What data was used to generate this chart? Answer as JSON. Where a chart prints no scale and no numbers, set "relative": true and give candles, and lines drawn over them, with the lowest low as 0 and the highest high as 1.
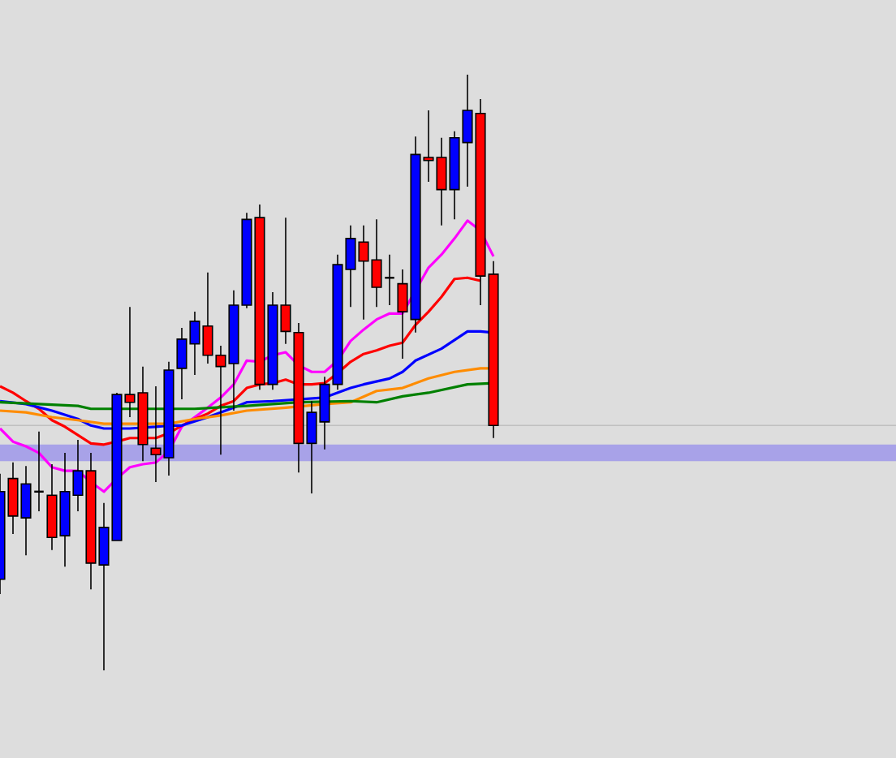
{
  "chart_data": {
    "type": "candlestick",
    "relative": true,
    "categories": [
      null,
      null,
      null,
      null,
      null,
      null,
      null,
      null,
      null,
      null,
      null,
      null,
      null,
      null,
      null,
      null,
      null,
      null,
      null,
      null,
      null,
      null,
      null,
      null,
      null,
      null,
      null,
      null,
      null,
      null,
      null,
      null,
      null,
      null,
      null,
      null,
      null,
      null,
      null
    ],
    "ohlc": [
      [
        0.153,
        0.33,
        0.128,
        0.3
      ],
      [
        0.322,
        0.349,
        0.229,
        0.259
      ],
      [
        0.256,
        0.343,
        0.193,
        0.313
      ],
      [
        0.3,
        0.401,
        0.267,
        0.3
      ],
      [
        0.294,
        0.346,
        0.202,
        0.223
      ],
      [
        0.226,
        0.365,
        0.174,
        0.3
      ],
      [
        0.294,
        0.387,
        0.267,
        0.335
      ],
      [
        0.335,
        0.365,
        0.136,
        0.18
      ],
      [
        0.177,
        0.281,
        0,
        0.24
      ],
      [
        0.218,
        0.466,
        0.218,
        0.463
      ],
      [
        0.463,
        0.61,
        0.425,
        0.45
      ],
      [
        0.466,
        0.51,
        0.351,
        0.379
      ],
      [
        0.373,
        0.477,
        0.316,
        0.362
      ],
      [
        0.357,
        0.518,
        0.327,
        0.504
      ],
      [
        0.507,
        0.575,
        0.455,
        0.556
      ],
      [
        0.548,
        0.602,
        0.496,
        0.586
      ],
      [
        0.578,
        0.668,
        0.515,
        0.529
      ],
      [
        0.529,
        0.545,
        0.362,
        0.51
      ],
      [
        0.515,
        0.638,
        0.436,
        0.613
      ],
      [
        0.613,
        0.768,
        0.608,
        0.757
      ],
      [
        0.76,
        0.782,
        0.471,
        0.48
      ],
      [
        0.48,
        0.635,
        0.471,
        0.613
      ],
      [
        0.613,
        0.76,
        0.548,
        0.569
      ],
      [
        0.567,
        0.583,
        0.332,
        0.381
      ],
      [
        0.381,
        0.452,
        0.297,
        0.433
      ],
      [
        0.417,
        0.493,
        0.371,
        0.48
      ],
      [
        0.48,
        0.698,
        0.471,
        0.681
      ],
      [
        0.673,
        0.747,
        0.61,
        0.725
      ],
      [
        0.719,
        0.747,
        0.589,
        0.687
      ],
      [
        0.689,
        0.757,
        0.61,
        0.643
      ],
      [
        0.659,
        0.698,
        0.613,
        0.659
      ],
      [
        0.649,
        0.673,
        0.523,
        0.602
      ],
      [
        0.589,
        0.896,
        0.567,
        0.866
      ],
      [
        0.861,
        0.94,
        0.82,
        0.856
      ],
      [
        0.861,
        0.894,
        0.747,
        0.807
      ],
      [
        0.807,
        0.905,
        0.757,
        0.894
      ],
      [
        0.886,
        1.0,
        0.812,
        0.94
      ],
      [
        0.935,
        0.959,
        0.613,
        0.662
      ],
      [
        0.665,
        0.687,
        0.39,
        0.411
      ]
    ],
    "colors": [
      "#0000ff",
      "#ff0000",
      "#0000ff",
      "#000000",
      "#ff0000",
      "#0000ff",
      "#0000ff",
      "#ff0000",
      "#0000ff",
      "#0000ff",
      "#ff0000",
      "#ff0000",
      "#ff0000",
      "#0000ff",
      "#0000ff",
      "#0000ff",
      "#ff0000",
      "#ff0000",
      "#0000ff",
      "#0000ff",
      "#ff0000",
      "#0000ff",
      "#ff0000",
      "#ff0000",
      "#0000ff",
      "#0000ff",
      "#0000ff",
      "#0000ff",
      "#ff0000",
      "#ff0000",
      "#000000",
      "#ff0000",
      "#0000ff",
      "#ff0000",
      "#ff0000",
      "#0000ff",
      "#0000ff",
      "#ff0000",
      "#ff0000"
    ],
    "series": [
      {
        "type": "line",
        "color": "#ff00ff",
        "values": [
          0.406,
          0.384,
          0.376,
          0.365,
          0.341,
          0.335,
          0.335,
          0.316,
          0.3,
          0.322,
          0.341,
          0.346,
          0.349,
          0.368,
          0.409,
          0.425,
          0.441,
          0.458,
          0.48,
          0.52,
          0.518,
          0.529,
          0.534,
          0.512,
          0.501,
          0.501,
          0.52,
          0.553,
          0.572,
          0.589,
          0.599,
          0.599,
          null,
          0.676,
          0.698,
          0.725,
          0.755,
          0.738,
          0.695
        ]
      },
      {
        "type": "line",
        "color": "#ff0000",
        "values": [
          0.477,
          0.466,
          0.452,
          0.439,
          0.42,
          0.409,
          0.395,
          0.381,
          0.379,
          0.384,
          0.39,
          0.39,
          0.39,
          0.398,
          0.411,
          0.422,
          0.431,
          0.444,
          0.452,
          0.474,
          0.48,
          0.482,
          0.488,
          0.48,
          0.48,
          0.482,
          0.499,
          0.518,
          0.531,
          0.537,
          0.545,
          0.55,
          0.58,
          0.602,
          0.627,
          0.657,
          0.659,
          0.654,
          null
        ]
      },
      {
        "type": "line",
        "color": "#0000ff",
        "values": [
          0.452,
          null,
          0.447,
          null,
          0.436,
          null,
          0.422,
          0.411,
          0.406,
          null,
          0.406,
          null,
          0.409,
          0.411,
          0.411,
          null,
          0.425,
          null,
          0.441,
          0.45,
          null,
          0.452,
          null,
          0.455,
          null,
          0.458,
          null,
          0.474,
          0.48,
          null,
          0.49,
          0.501,
          0.52,
          null,
          0.54,
          null,
          0.569,
          0.569,
          0.567
        ]
      },
      {
        "type": "line",
        "color": "#ff8c00",
        "values": [
          0.436,
          null,
          0.433,
          null,
          0.425,
          null,
          0.42,
          null,
          0.414,
          null,
          0.414,
          null,
          0.414,
          0.414,
          null,
          0.422,
          null,
          0.428,
          null,
          0.436,
          null,
          null,
          0.441,
          null,
          null,
          0.447,
          null,
          0.45,
          null,
          0.469,
          null,
          0.474,
          null,
          0.49,
          null,
          0.501,
          null,
          0.507,
          0.507
        ]
      },
      {
        "type": "line",
        "color": "#008000",
        "values": [
          0.45,
          null,
          null,
          0.447,
          null,
          null,
          0.444,
          0.439,
          null,
          0.439,
          null,
          null,
          null,
          0.439,
          null,
          0.439,
          null,
          null,
          null,
          0.444,
          null,
          null,
          null,
          0.45,
          null,
          null,
          null,
          0.452,
          null,
          0.45,
          null,
          0.46,
          null,
          0.466,
          null,
          null,
          0.48,
          null,
          0.482
        ]
      }
    ],
    "ref_lines": [
      {
        "axis": "y",
        "value": 0.411,
        "color": "#c0c0c0"
      }
    ],
    "bands": [
      {
        "axis": "y",
        "from": 0.351,
        "to": 0.379,
        "color": "#a8a2e8"
      }
    ]
  }
}
